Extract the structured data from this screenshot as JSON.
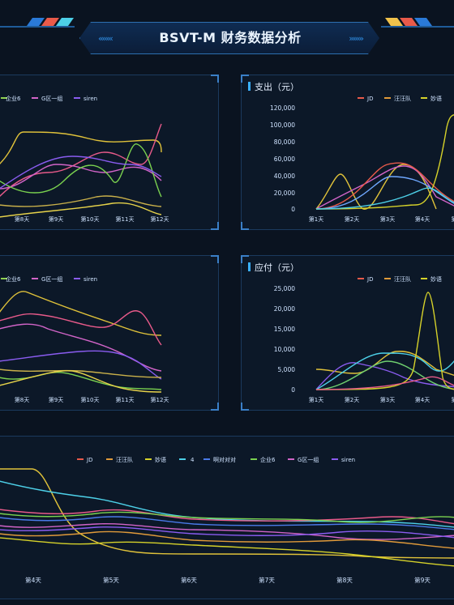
{
  "header": {
    "title": "BSVT-M 财务数据分析",
    "left_chevrons": "‹‹‹‹‹‹‹",
    "right_chevrons": "›››››››"
  },
  "colors": {
    "accent": "#2f8fe6",
    "panel_border": "#1b3a5e"
  },
  "panels": {
    "top_left": {
      "title": "",
      "legend": [
        "企业6",
        "G区一组",
        "siren"
      ],
      "x_labels": [
        "第8天",
        "第9天",
        "第10天",
        "第11天",
        "第12天"
      ]
    },
    "top_right": {
      "title": "支出（元）",
      "legend": [
        "JD",
        "汪汪队",
        "妙语"
      ],
      "y_labels": [
        "120,000",
        "100,000",
        "80,000",
        "60,000",
        "40,000",
        "20,000",
        "0"
      ],
      "x_labels": [
        "第1天",
        "第2天",
        "第3天",
        "第4天",
        "第"
      ]
    },
    "mid_left": {
      "title": "",
      "legend": [
        "企业6",
        "G区一组",
        "siren"
      ],
      "x_labels": [
        "第8天",
        "第9天",
        "第10天",
        "第11天",
        "第12天"
      ]
    },
    "mid_right": {
      "title": "应付（元）",
      "legend": [
        "JD",
        "汪汪队",
        "妙语"
      ],
      "y_labels": [
        "25,000",
        "20,000",
        "15,000",
        "10,000",
        "5,000",
        "0"
      ],
      "x_labels": [
        "第1天",
        "第2天",
        "第3天",
        "第4天",
        "第"
      ]
    },
    "bottom": {
      "legend": [
        "JD",
        "汪汪队",
        "妙语",
        "4",
        "啊对对对",
        "企业6",
        "G区一组",
        "siren"
      ],
      "x_labels": [
        "第4天",
        "第5天",
        "第6天",
        "第7天",
        "第8天",
        "第9天"
      ]
    }
  }
}
